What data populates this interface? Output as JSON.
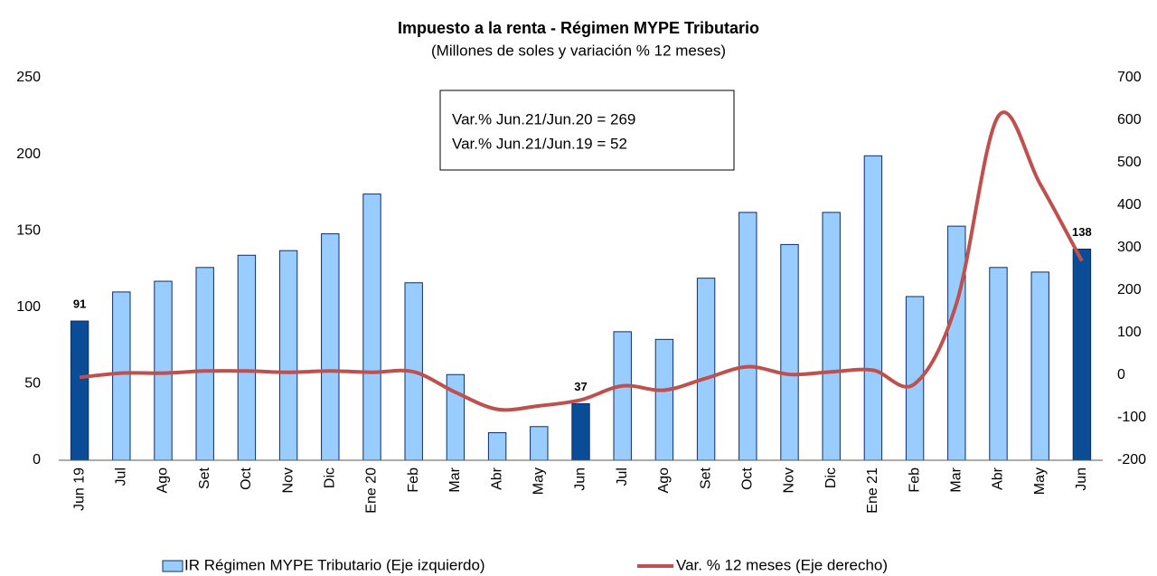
{
  "chart_data": {
    "type": "bar_line",
    "title": "Impuesto a la renta - Régimen MYPE Tributario",
    "subtitle": "(Millones de soles y variación % 12 meses)",
    "categories": [
      "Jun 19",
      "Jul",
      "Ago",
      "Set",
      "Oct",
      "Nov",
      "Dic",
      "Ene 20",
      "Feb",
      "Mar",
      "Abr",
      "May",
      "Jun",
      "Jul",
      "Ago",
      "Set",
      "Oct",
      "Nov",
      "Dic",
      "Ene 21",
      "Feb",
      "Mar",
      "Abr",
      "May",
      "Jun"
    ],
    "series": [
      {
        "name": "IR Régimen MYPE Tributario (Eje izquierdo)",
        "type": "bar",
        "color": "#99ccff",
        "highlight_color": "#0b4c96",
        "highlighted": [
          0,
          12,
          24
        ],
        "labeled": [
          0,
          12,
          24
        ],
        "values": [
          91,
          110,
          117,
          126,
          134,
          137,
          148,
          174,
          116,
          56,
          18,
          22,
          37,
          84,
          79,
          119,
          162,
          141,
          162,
          199,
          107,
          153,
          126,
          123,
          138
        ]
      },
      {
        "name": "Var. % 12 meses (Eje derecho)",
        "type": "line",
        "axis": "y2",
        "color": "#c0504d",
        "values": [
          -5,
          5,
          5,
          10,
          10,
          7,
          10,
          7,
          8,
          -40,
          -80,
          -72,
          -58,
          -25,
          -35,
          -7,
          20,
          2,
          8,
          12,
          -20,
          170,
          610,
          450,
          269
        ]
      }
    ],
    "annotation": [
      "Var.% Jun.21/Jun.20 = 269",
      "Var.% Jun.21/Jun.19 = 52"
    ],
    "ylim": [
      0,
      250
    ],
    "yticks": [
      0,
      50,
      100,
      150,
      200,
      250
    ],
    "y2lim": [
      -200,
      700
    ],
    "y2ticks": [
      -200,
      -100,
      0,
      100,
      200,
      300,
      400,
      500,
      600,
      700
    ],
    "legend": "bottom"
  }
}
